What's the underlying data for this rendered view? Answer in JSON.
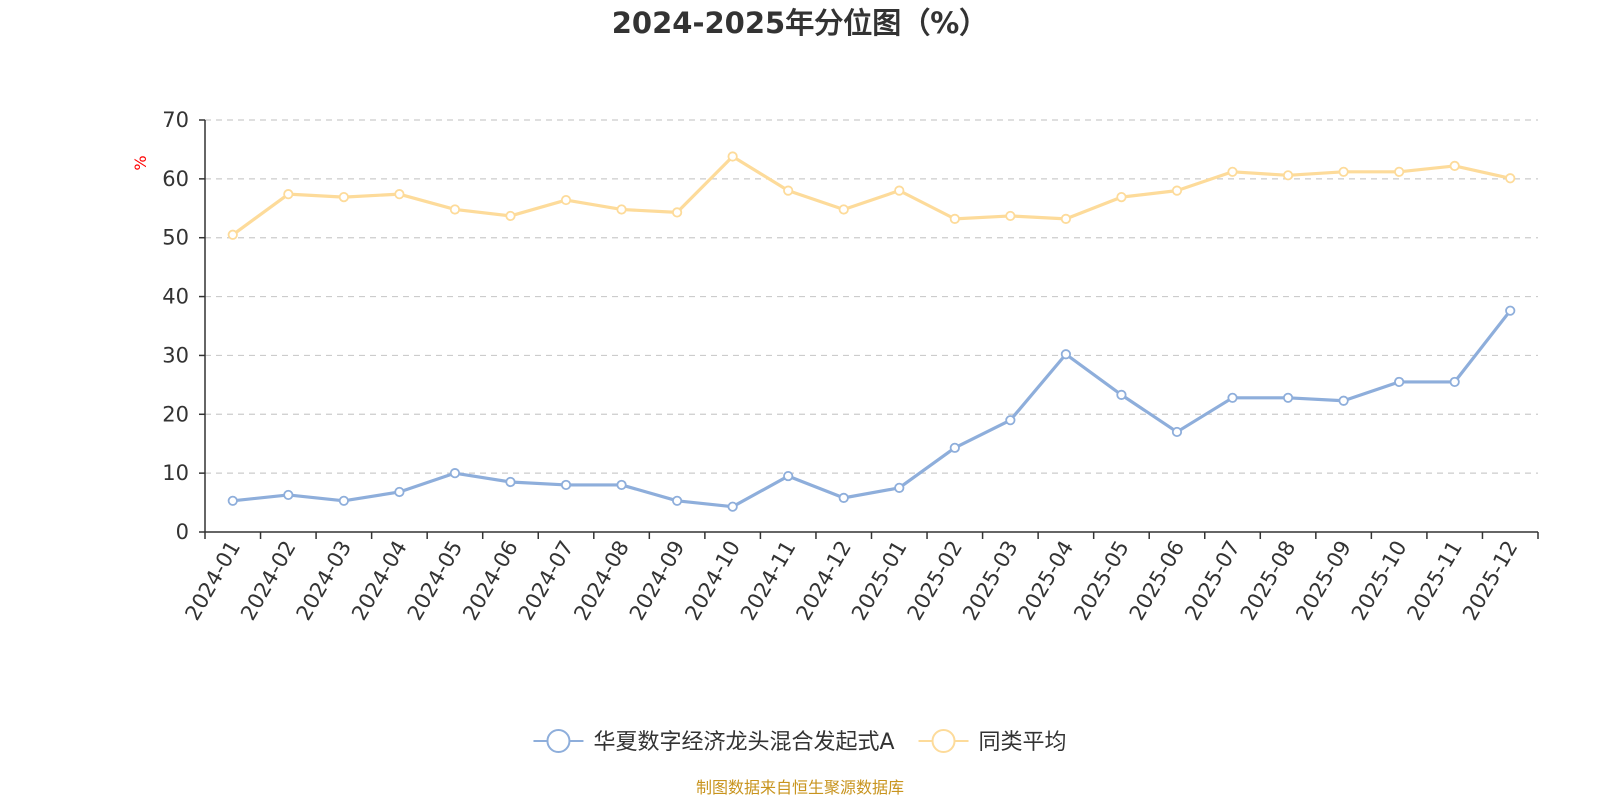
{
  "chart_data": {
    "type": "line",
    "title": "2024-2025年分位图（%）",
    "ylabel": "%",
    "xlabel": "",
    "ylim": [
      0,
      70
    ],
    "yticks": [
      0,
      10,
      20,
      30,
      40,
      50,
      60,
      70
    ],
    "grid": true,
    "legend_position": "bottom-center",
    "categories": [
      "2024-01",
      "2024-02",
      "2024-03",
      "2024-04",
      "2024-05",
      "2024-06",
      "2024-07",
      "2024-08",
      "2024-09",
      "2024-10",
      "2024-11",
      "2024-12",
      "2025-01",
      "2025-02",
      "2025-03",
      "2025-04",
      "2025-05",
      "2025-06",
      "2025-07",
      "2025-08",
      "2025-09",
      "2025-10",
      "2025-11",
      "2025-12"
    ],
    "series": [
      {
        "name": "华夏数字经济龙头混合发起式A",
        "color": "#8eaedb",
        "values": [
          5.3,
          6.3,
          5.3,
          6.8,
          10.0,
          8.5,
          8.0,
          8.0,
          5.3,
          4.3,
          9.5,
          5.8,
          7.5,
          14.3,
          19.0,
          30.2,
          23.3,
          17.0,
          22.8,
          22.8,
          22.3,
          25.5,
          25.5,
          37.6
        ]
      },
      {
        "name": "同类平均",
        "color": "#fddb9a",
        "values": [
          50.5,
          57.4,
          56.9,
          57.4,
          54.8,
          53.7,
          56.4,
          54.8,
          54.3,
          63.8,
          58.0,
          54.8,
          58.0,
          53.2,
          53.7,
          53.2,
          56.9,
          58.0,
          61.2,
          60.6,
          61.2,
          61.2,
          62.2,
          60.1
        ]
      }
    ],
    "source": "制图数据来自恒生聚源数据库",
    "source_color": "#c8941e",
    "unit_color": "#ff0000",
    "axis_color": "#333333",
    "grid_color": "#cccccc",
    "text_color": "#333333"
  }
}
